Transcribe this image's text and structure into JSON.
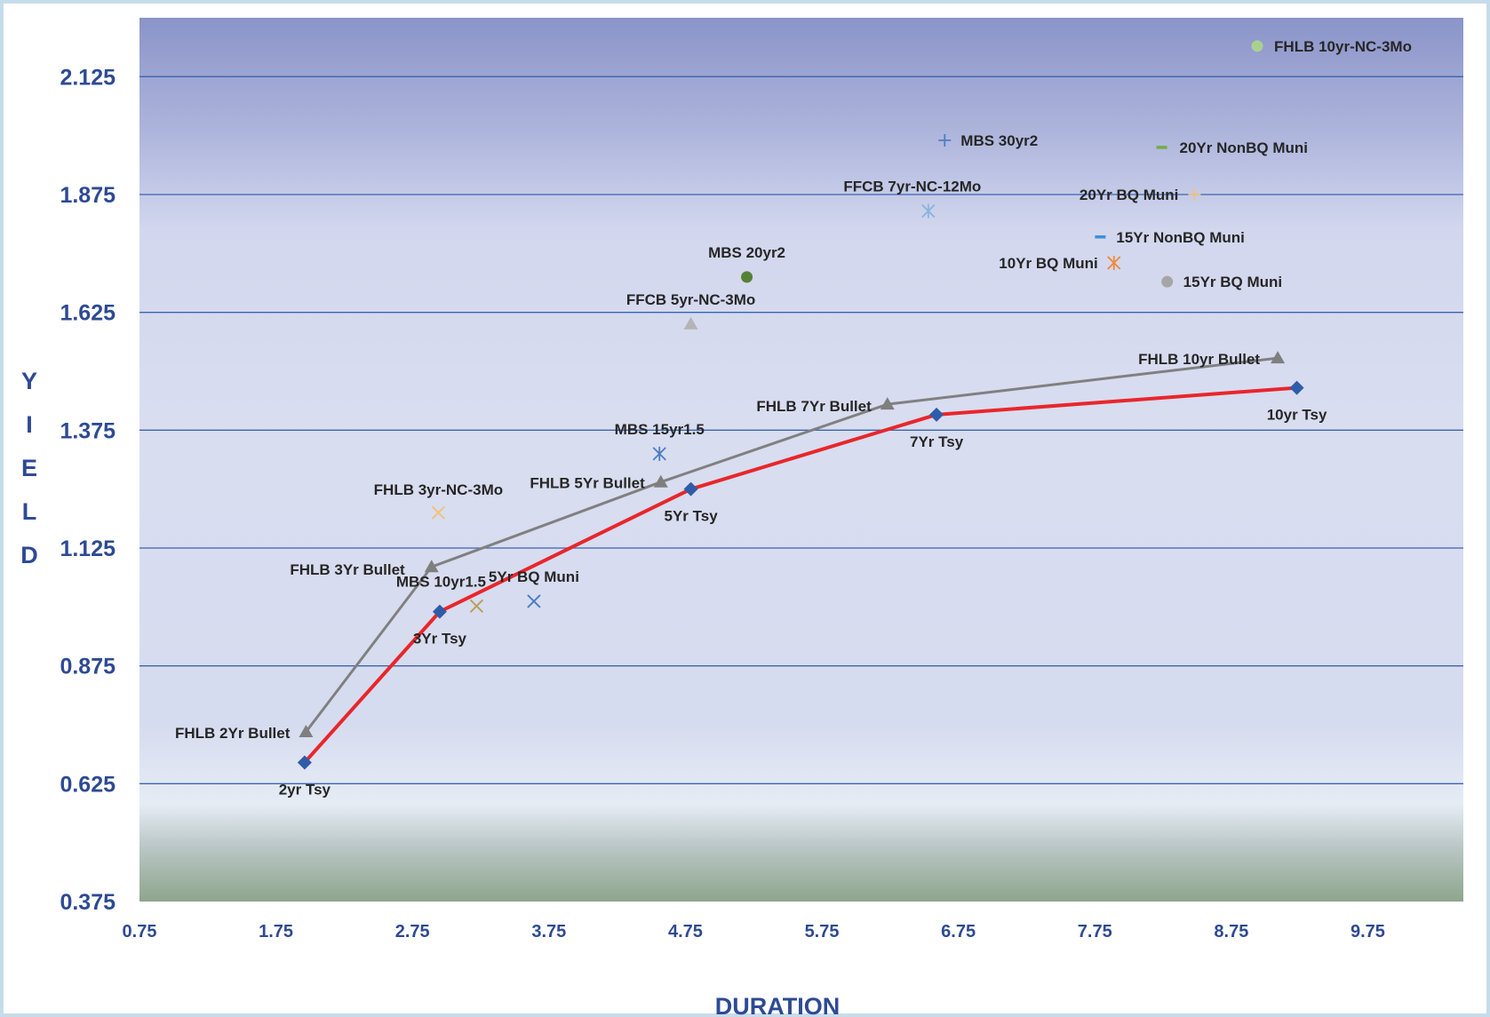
{
  "chart_data": {
    "type": "scatter",
    "title": "",
    "xlabel": "DURATION",
    "ylabel": "YIELD",
    "xlim": [
      0.75,
      10.45
    ],
    "ylim": [
      0.375,
      2.25
    ],
    "x_ticks": [
      "0.75",
      "1.75",
      "2.75",
      "3.75",
      "4.75",
      "5.75",
      "6.75",
      "7.75",
      "8.75",
      "9.75"
    ],
    "y_ticks": [
      "0.375",
      "0.625",
      "0.875",
      "1.125",
      "1.375",
      "1.625",
      "1.875",
      "2.125"
    ],
    "grid": "horizontal",
    "line_series": [
      {
        "color": "#e8262b",
        "marker": "diamond",
        "marker_color": "#2f5ca8",
        "points": [
          {
            "x": 1.96,
            "y": 0.67,
            "label": "2yr Tsy"
          },
          {
            "x": 2.95,
            "y": 0.99,
            "label": "3Yr Tsy"
          },
          {
            "x": 4.79,
            "y": 1.25,
            "label": "5Yr Tsy"
          },
          {
            "x": 6.59,
            "y": 1.408,
            "label": "7Yr Tsy"
          },
          {
            "x": 9.23,
            "y": 1.465,
            "label": "10yr Tsy"
          }
        ]
      },
      {
        "color": "#808080",
        "marker": "triangle",
        "marker_color": "#7f7f7f",
        "points": [
          {
            "x": 1.97,
            "y": 0.735,
            "label": "FHLB 2Yr Bullet"
          },
          {
            "x": 2.89,
            "y": 1.085,
            "label": "FHLB 3Yr Bullet"
          },
          {
            "x": 4.57,
            "y": 1.265,
            "label": "FHLB 5Yr Bullet"
          },
          {
            "x": 6.23,
            "y": 1.43,
            "label": "FHLB 7Yr Bullet"
          },
          {
            "x": 9.09,
            "y": 1.528,
            "label": "FHLB 10yr Bullet"
          }
        ]
      }
    ],
    "points": [
      {
        "x": 2.94,
        "y": 1.2,
        "label": "FHLB 3yr-NC-3Mo",
        "marker": "x",
        "color": "#f2c27a"
      },
      {
        "x": 3.22,
        "y": 1.002,
        "label": "MBS 10yr1.5",
        "marker": "x",
        "color": "#b9a05a"
      },
      {
        "x": 3.64,
        "y": 1.012,
        "label": "5Yr BQ Muni",
        "marker": "x",
        "color": "#4a7ec3"
      },
      {
        "x": 4.56,
        "y": 1.325,
        "label": "MBS 15yr1.5",
        "marker": "asterisk",
        "color": "#4a7ec3"
      },
      {
        "x": 4.79,
        "y": 1.6,
        "label": "FFCB 5yr-NC-3Mo",
        "marker": "triangle",
        "color": "#b4b4b4"
      },
      {
        "x": 5.2,
        "y": 1.7,
        "label": "MBS 20yr2",
        "marker": "circle",
        "color": "#548235"
      },
      {
        "x": 6.53,
        "y": 1.84,
        "label": "FFCB 7yr-NC-12Mo",
        "marker": "asterisk",
        "color": "#8ab4e0"
      },
      {
        "x": 6.65,
        "y": 1.99,
        "label": "MBS 30yr2",
        "marker": "plus",
        "color": "#4a7ec3"
      },
      {
        "x": 7.89,
        "y": 1.73,
        "label": "10Yr BQ Muni",
        "marker": "asterisk",
        "color": "#f08a3a"
      },
      {
        "x": 7.79,
        "y": 1.785,
        "label": "15Yr NonBQ Muni",
        "marker": "dash",
        "color": "#3f8fd2"
      },
      {
        "x": 8.28,
        "y": 1.69,
        "label": "15Yr BQ Muni",
        "marker": "circle",
        "color": "#a6a6a6"
      },
      {
        "x": 8.48,
        "y": 1.875,
        "label": "20Yr BQ Muni",
        "marker": "plus",
        "color": "#f2c27a"
      },
      {
        "x": 8.24,
        "y": 1.975,
        "label": "20Yr NonBQ Muni",
        "marker": "dash",
        "color": "#70ad47"
      },
      {
        "x": 8.94,
        "y": 2.19,
        "label": "FHLB 10yr-NC-3Mo",
        "marker": "circle",
        "color": "#a9d18e"
      }
    ]
  }
}
